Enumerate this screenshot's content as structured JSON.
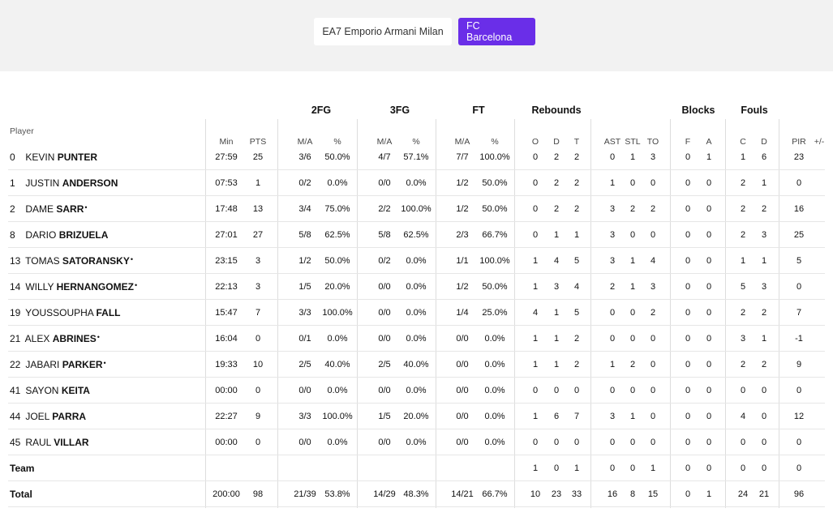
{
  "team_tabs": [
    {
      "label": "EA7 Emporio Armani Milan",
      "active": false
    },
    {
      "label": "FC Barcelona",
      "active": true
    }
  ],
  "table": {
    "group_headers": {
      "fg2": "2FG",
      "fg3": "3FG",
      "ft": "FT",
      "rebounds": "Rebounds",
      "blocks": "Blocks",
      "fouls": "Fouls"
    },
    "player_header": "Player",
    "sub_headers": {
      "min": "Min",
      "pts": "PTS",
      "fg2_ma": "M/A",
      "fg2_pct": "%",
      "fg3_ma": "M/A",
      "fg3_pct": "%",
      "ft_ma": "M/A",
      "ft_pct": "%",
      "o": "O",
      "d": "D",
      "t": "T",
      "ast": "AST",
      "stl": "STL",
      "to": "TO",
      "blk_f": "F",
      "blk_a": "A",
      "foul_c": "C",
      "foul_d": "D",
      "pir": "PIR",
      "pm": "+/-"
    },
    "rows": [
      {
        "num": "0",
        "first": "KEVIN",
        "last": "PUNTER",
        "mark": "",
        "min": "27:59",
        "pts": "25",
        "fg2_ma": "3/6",
        "fg2_pct": "50.0%",
        "fg3_ma": "4/7",
        "fg3_pct": "57.1%",
        "ft_ma": "7/7",
        "ft_pct": "100.0%",
        "o": "0",
        "d": "2",
        "t": "2",
        "ast": "0",
        "stl": "1",
        "to": "3",
        "blk_f": "0",
        "blk_a": "1",
        "foul_c": "1",
        "foul_d": "6",
        "pir": "23"
      },
      {
        "num": "1",
        "first": "JUSTIN",
        "last": "ANDERSON",
        "mark": "",
        "min": "07:53",
        "pts": "1",
        "fg2_ma": "0/2",
        "fg2_pct": "0.0%",
        "fg3_ma": "0/0",
        "fg3_pct": "0.0%",
        "ft_ma": "1/2",
        "ft_pct": "50.0%",
        "o": "0",
        "d": "2",
        "t": "2",
        "ast": "1",
        "stl": "0",
        "to": "0",
        "blk_f": "0",
        "blk_a": "0",
        "foul_c": "2",
        "foul_d": "1",
        "pir": "0"
      },
      {
        "num": "2",
        "first": "DAME",
        "last": "SARR",
        "mark": "•",
        "min": "17:48",
        "pts": "13",
        "fg2_ma": "3/4",
        "fg2_pct": "75.0%",
        "fg3_ma": "2/2",
        "fg3_pct": "100.0%",
        "ft_ma": "1/2",
        "ft_pct": "50.0%",
        "o": "0",
        "d": "2",
        "t": "2",
        "ast": "3",
        "stl": "2",
        "to": "2",
        "blk_f": "0",
        "blk_a": "0",
        "foul_c": "2",
        "foul_d": "2",
        "pir": "16"
      },
      {
        "num": "8",
        "first": "DARIO",
        "last": "BRIZUELA",
        "mark": "",
        "min": "27:01",
        "pts": "27",
        "fg2_ma": "5/8",
        "fg2_pct": "62.5%",
        "fg3_ma": "5/8",
        "fg3_pct": "62.5%",
        "ft_ma": "2/3",
        "ft_pct": "66.7%",
        "o": "0",
        "d": "1",
        "t": "1",
        "ast": "3",
        "stl": "0",
        "to": "0",
        "blk_f": "0",
        "blk_a": "0",
        "foul_c": "2",
        "foul_d": "3",
        "pir": "25"
      },
      {
        "num": "13",
        "first": "TOMAS",
        "last": "SATORANSKY",
        "mark": "•",
        "min": "23:15",
        "pts": "3",
        "fg2_ma": "1/2",
        "fg2_pct": "50.0%",
        "fg3_ma": "0/2",
        "fg3_pct": "0.0%",
        "ft_ma": "1/1",
        "ft_pct": "100.0%",
        "o": "1",
        "d": "4",
        "t": "5",
        "ast": "3",
        "stl": "1",
        "to": "4",
        "blk_f": "0",
        "blk_a": "0",
        "foul_c": "1",
        "foul_d": "1",
        "pir": "5"
      },
      {
        "num": "14",
        "first": "WILLY",
        "last": "HERNANGOMEZ",
        "mark": "•",
        "min": "22:13",
        "pts": "3",
        "fg2_ma": "1/5",
        "fg2_pct": "20.0%",
        "fg3_ma": "0/0",
        "fg3_pct": "0.0%",
        "ft_ma": "1/2",
        "ft_pct": "50.0%",
        "o": "1",
        "d": "3",
        "t": "4",
        "ast": "2",
        "stl": "1",
        "to": "3",
        "blk_f": "0",
        "blk_a": "0",
        "foul_c": "5",
        "foul_d": "3",
        "pir": "0"
      },
      {
        "num": "19",
        "first": "YOUSSOUPHA",
        "last": "FALL",
        "mark": "",
        "min": "15:47",
        "pts": "7",
        "fg2_ma": "3/3",
        "fg2_pct": "100.0%",
        "fg3_ma": "0/0",
        "fg3_pct": "0.0%",
        "ft_ma": "1/4",
        "ft_pct": "25.0%",
        "o": "4",
        "d": "1",
        "t": "5",
        "ast": "0",
        "stl": "0",
        "to": "2",
        "blk_f": "0",
        "blk_a": "0",
        "foul_c": "2",
        "foul_d": "2",
        "pir": "7"
      },
      {
        "num": "21",
        "first": "ALEX",
        "last": "ABRINES",
        "mark": "•",
        "min": "16:04",
        "pts": "0",
        "fg2_ma": "0/1",
        "fg2_pct": "0.0%",
        "fg3_ma": "0/0",
        "fg3_pct": "0.0%",
        "ft_ma": "0/0",
        "ft_pct": "0.0%",
        "o": "1",
        "d": "1",
        "t": "2",
        "ast": "0",
        "stl": "0",
        "to": "0",
        "blk_f": "0",
        "blk_a": "0",
        "foul_c": "3",
        "foul_d": "1",
        "pir": "-1"
      },
      {
        "num": "22",
        "first": "JABARI",
        "last": "PARKER",
        "mark": "•",
        "min": "19:33",
        "pts": "10",
        "fg2_ma": "2/5",
        "fg2_pct": "40.0%",
        "fg3_ma": "2/5",
        "fg3_pct": "40.0%",
        "ft_ma": "0/0",
        "ft_pct": "0.0%",
        "o": "1",
        "d": "1",
        "t": "2",
        "ast": "1",
        "stl": "2",
        "to": "0",
        "blk_f": "0",
        "blk_a": "0",
        "foul_c": "2",
        "foul_d": "2",
        "pir": "9"
      },
      {
        "num": "41",
        "first": "SAYON",
        "last": "KEITA",
        "mark": "",
        "min": "00:00",
        "pts": "0",
        "fg2_ma": "0/0",
        "fg2_pct": "0.0%",
        "fg3_ma": "0/0",
        "fg3_pct": "0.0%",
        "ft_ma": "0/0",
        "ft_pct": "0.0%",
        "o": "0",
        "d": "0",
        "t": "0",
        "ast": "0",
        "stl": "0",
        "to": "0",
        "blk_f": "0",
        "blk_a": "0",
        "foul_c": "0",
        "foul_d": "0",
        "pir": "0"
      },
      {
        "num": "44",
        "first": "JOEL",
        "last": "PARRA",
        "mark": "",
        "min": "22:27",
        "pts": "9",
        "fg2_ma": "3/3",
        "fg2_pct": "100.0%",
        "fg3_ma": "1/5",
        "fg3_pct": "20.0%",
        "ft_ma": "0/0",
        "ft_pct": "0.0%",
        "o": "1",
        "d": "6",
        "t": "7",
        "ast": "3",
        "stl": "1",
        "to": "0",
        "blk_f": "0",
        "blk_a": "0",
        "foul_c": "4",
        "foul_d": "0",
        "pir": "12"
      },
      {
        "num": "45",
        "first": "RAUL",
        "last": "VILLAR",
        "mark": "",
        "min": "00:00",
        "pts": "0",
        "fg2_ma": "0/0",
        "fg2_pct": "0.0%",
        "fg3_ma": "0/0",
        "fg3_pct": "0.0%",
        "ft_ma": "0/0",
        "ft_pct": "0.0%",
        "o": "0",
        "d": "0",
        "t": "0",
        "ast": "0",
        "stl": "0",
        "to": "0",
        "blk_f": "0",
        "blk_a": "0",
        "foul_c": "0",
        "foul_d": "0",
        "pir": "0"
      }
    ],
    "team_row": {
      "label": "Team",
      "o": "1",
      "d": "0",
      "t": "1",
      "ast": "0",
      "stl": "0",
      "to": "1",
      "blk_f": "0",
      "blk_a": "0",
      "foul_c": "0",
      "foul_d": "0",
      "pir": "0"
    },
    "total_row": {
      "label": "Total",
      "min": "200:00",
      "pts": "98",
      "fg2_ma": "21/39",
      "fg2_pct": "53.8%",
      "fg3_ma": "14/29",
      "fg3_pct": "48.3%",
      "ft_ma": "14/21",
      "ft_pct": "66.7%",
      "o": "10",
      "d": "23",
      "t": "33",
      "ast": "16",
      "stl": "8",
      "to": "15",
      "blk_f": "0",
      "blk_a": "1",
      "foul_c": "24",
      "foul_d": "21",
      "pir": "96"
    }
  }
}
